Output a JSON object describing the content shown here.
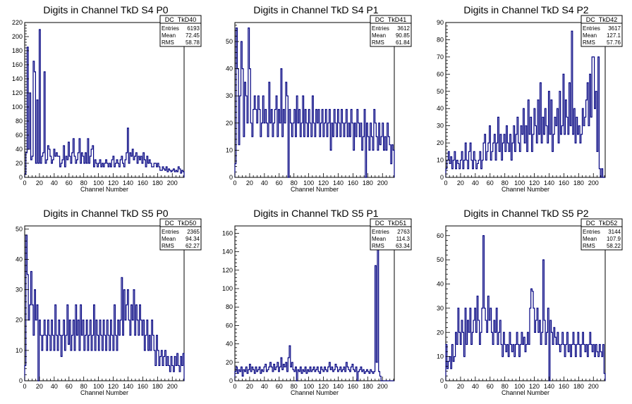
{
  "chart_data": [
    {
      "type": "bar",
      "name": "DC_TkD40",
      "title": "Digits in Channel TkD S4 P0",
      "xlabel": "Channel Number",
      "xlim": [
        0,
        216
      ],
      "ylim": [
        0,
        220
      ],
      "xticks": [
        "0",
        "20",
        "40",
        "60",
        "80",
        "100",
        "120",
        "140",
        "160",
        "180",
        "200"
      ],
      "yticks": [
        "0",
        "20",
        "40",
        "60",
        "80",
        "100",
        "120",
        "140",
        "160",
        "180",
        "200",
        "220"
      ],
      "stats": {
        "entries": "6193",
        "mean": "72.45",
        "rms": "58.78"
      },
      "values": [
        5,
        35,
        185,
        40,
        120,
        25,
        30,
        165,
        150,
        20,
        110,
        20,
        210,
        20,
        30,
        35,
        150,
        20,
        25,
        45,
        40,
        30,
        20,
        25,
        40,
        30,
        35,
        30,
        30,
        15,
        20,
        25,
        45,
        15,
        30,
        25,
        50,
        30,
        20,
        35,
        55,
        30,
        20,
        25,
        35,
        55,
        20,
        35,
        30,
        20,
        35,
        20,
        55,
        20,
        30,
        40,
        45,
        15,
        25,
        20,
        15,
        20,
        25,
        15,
        20,
        15,
        20,
        25,
        20,
        15,
        20,
        15,
        25,
        30,
        15,
        20,
        25,
        20,
        15,
        25,
        30,
        20,
        15,
        25,
        35,
        70,
        20,
        35,
        30,
        40,
        25,
        30,
        35,
        20,
        30,
        25,
        30,
        20,
        35,
        25,
        15,
        30,
        20,
        25,
        20,
        15,
        15,
        20,
        20,
        15,
        20,
        15,
        10,
        10,
        15,
        12,
        10,
        15,
        8,
        12,
        10,
        8,
        10,
        12,
        8,
        10,
        8,
        15,
        12,
        6,
        10,
        8
      ]
    },
    {
      "type": "bar",
      "name": "DC_TkD41",
      "title": "Digits in Channel TkD S4 P1",
      "xlabel": "Channel Number",
      "xlim": [
        0,
        216
      ],
      "ylim": [
        0,
        57
      ],
      "xticks": [
        "0",
        "20",
        "40",
        "60",
        "80",
        "100",
        "120",
        "140",
        "160",
        "180",
        "200"
      ],
      "yticks": [
        "0",
        "10",
        "20",
        "30",
        "40",
        "50"
      ],
      "stats": {
        "entries": "3612",
        "mean": "90.85",
        "rms": "61.84"
      },
      "values": [
        5,
        55,
        40,
        12,
        30,
        50,
        40,
        15,
        35,
        30,
        20,
        55,
        40,
        20,
        15,
        25,
        30,
        25,
        20,
        30,
        25,
        15,
        20,
        30,
        20,
        25,
        20,
        15,
        35,
        20,
        25,
        15,
        20,
        25,
        30,
        15,
        25,
        20,
        40,
        15,
        25,
        20,
        35,
        30,
        0,
        25,
        20,
        15,
        20,
        25,
        15,
        30,
        20,
        25,
        15,
        20,
        30,
        15,
        25,
        20,
        15,
        25,
        20,
        15,
        30,
        20,
        15,
        25,
        20,
        25,
        15,
        20,
        25,
        15,
        20,
        25,
        15,
        20,
        25,
        10,
        20,
        15,
        25,
        20,
        15,
        25,
        20,
        15,
        25,
        20,
        15,
        20,
        25,
        15,
        20,
        15,
        25,
        20,
        10,
        20,
        15,
        25,
        20,
        15,
        20,
        10,
        15,
        25,
        0,
        20,
        15,
        10,
        20,
        15,
        10,
        25,
        20,
        15,
        10,
        20,
        12,
        15,
        20,
        10,
        15,
        10,
        20,
        15,
        12,
        5,
        12,
        10
      ]
    },
    {
      "type": "bar",
      "name": "DC_TkD42",
      "title": "Digits in Channel TkD S4 P2",
      "xlabel": "Channel Number",
      "xlim": [
        0,
        216
      ],
      "ylim": [
        0,
        90
      ],
      "xticks": [
        "0",
        "20",
        "40",
        "60",
        "80",
        "100",
        "120",
        "140",
        "160",
        "180",
        "200"
      ],
      "yticks": [
        "0",
        "10",
        "20",
        "30",
        "40",
        "50",
        "60",
        "70",
        "80",
        "90"
      ],
      "stats": {
        "entries": "3617",
        "mean": "127.1",
        "rms": "57.76"
      },
      "values": [
        5,
        10,
        15,
        8,
        12,
        5,
        10,
        15,
        5,
        10,
        8,
        5,
        10,
        15,
        5,
        10,
        20,
        10,
        5,
        15,
        20,
        10,
        5,
        15,
        10,
        5,
        8,
        10,
        15,
        5,
        10,
        20,
        25,
        10,
        15,
        20,
        30,
        10,
        15,
        20,
        25,
        10,
        20,
        35,
        15,
        25,
        10,
        20,
        25,
        15,
        30,
        20,
        15,
        25,
        10,
        20,
        30,
        15,
        25,
        35,
        20,
        15,
        30,
        25,
        40,
        20,
        30,
        15,
        45,
        25,
        35,
        15,
        25,
        40,
        30,
        20,
        45,
        25,
        55,
        20,
        35,
        25,
        40,
        30,
        20,
        50,
        25,
        45,
        15,
        25,
        35,
        30,
        40,
        20,
        50,
        25,
        30,
        60,
        25,
        45,
        35,
        25,
        55,
        30,
        85,
        25,
        40,
        20,
        35,
        25,
        30,
        20,
        25,
        40,
        30,
        35,
        45,
        55,
        30,
        60,
        35,
        70,
        70,
        40,
        50,
        15,
        70,
        5,
        0,
        5,
        0,
        0
      ]
    },
    {
      "type": "bar",
      "name": "DC_TkD50",
      "title": "Digits in Channel TkD S5 P0",
      "xlabel": "Channel Number",
      "xlim": [
        0,
        216
      ],
      "ylim": [
        0,
        51
      ],
      "xticks": [
        "0",
        "20",
        "40",
        "60",
        "80",
        "100",
        "120",
        "140",
        "160",
        "180",
        "200"
      ],
      "yticks": [
        "0",
        "10",
        "20",
        "30",
        "40",
        "50"
      ],
      "stats": {
        "entries": "2365",
        "mean": "94.34",
        "rms": "62.27"
      },
      "values": [
        5,
        48,
        35,
        20,
        25,
        36,
        25,
        15,
        30,
        20,
        25,
        0,
        20,
        15,
        10,
        15,
        20,
        15,
        10,
        20,
        15,
        10,
        20,
        15,
        10,
        25,
        15,
        10,
        20,
        15,
        8,
        15,
        20,
        10,
        15,
        25,
        12,
        20,
        10,
        15,
        20,
        10,
        25,
        15,
        20,
        10,
        25,
        15,
        20,
        10,
        15,
        20,
        10,
        15,
        20,
        10,
        15,
        25,
        10,
        20,
        15,
        10,
        20,
        15,
        10,
        20,
        15,
        10,
        20,
        15,
        10,
        20,
        15,
        10,
        25,
        15,
        10,
        20,
        15,
        20,
        34,
        15,
        30,
        20,
        25,
        30,
        20,
        15,
        25,
        20,
        30,
        15,
        25,
        20,
        15,
        25,
        20,
        15,
        20,
        10,
        15,
        20,
        10,
        15,
        10,
        20,
        15,
        10,
        5,
        15,
        10,
        5,
        8,
        10,
        5,
        8,
        10,
        5,
        8,
        5,
        3,
        8,
        5,
        3,
        8,
        5,
        9,
        5,
        3,
        8,
        5,
        9
      ]
    },
    {
      "type": "bar",
      "name": "DC_TkD51",
      "title": "Digits in Channel TkD S5 P1",
      "xlabel": "Channel Number",
      "xlim": [
        0,
        216
      ],
      "ylim": [
        0,
        168
      ],
      "xticks": [
        "0",
        "20",
        "40",
        "60",
        "80",
        "100",
        "120",
        "140",
        "160",
        "180",
        "200"
      ],
      "yticks": [
        "0",
        "20",
        "40",
        "60",
        "80",
        "100",
        "120",
        "140",
        "160"
      ],
      "stats": {
        "entries": "2763",
        "mean": "114.3",
        "rms": "63.34"
      },
      "values": [
        10,
        15,
        8,
        12,
        10,
        15,
        5,
        12,
        10,
        15,
        8,
        12,
        18,
        10,
        15,
        12,
        8,
        15,
        10,
        12,
        15,
        8,
        12,
        10,
        15,
        18,
        10,
        12,
        15,
        20,
        15,
        10,
        18,
        12,
        15,
        20,
        10,
        15,
        25,
        12,
        18,
        15,
        20,
        10,
        25,
        38,
        15,
        20,
        12,
        10,
        15,
        0,
        12,
        10,
        15,
        8,
        12,
        10,
        15,
        8,
        12,
        10,
        15,
        10,
        12,
        15,
        10,
        12,
        15,
        10,
        8,
        15,
        12,
        10,
        15,
        12,
        10,
        15,
        20,
        12,
        15,
        10,
        12,
        18,
        15,
        10,
        12,
        15,
        10,
        12,
        15,
        10,
        20,
        15,
        12,
        10,
        15,
        18,
        12,
        10,
        15,
        0,
        10,
        12,
        15,
        10,
        12,
        8,
        10,
        12,
        10,
        8,
        12,
        10,
        8,
        10,
        125,
        20,
        150,
        10,
        5,
        0,
        0,
        0,
        0,
        0,
        0,
        0,
        0,
        0,
        0,
        0
      ]
    },
    {
      "type": "bar",
      "name": "DC_TkD52",
      "title": "Digits in Channel TkD S5 P2",
      "xlabel": "Channel Number",
      "xlim": [
        0,
        216
      ],
      "ylim": [
        0,
        64
      ],
      "xticks": [
        "0",
        "20",
        "40",
        "60",
        "80",
        "100",
        "120",
        "140",
        "160",
        "180",
        "200"
      ],
      "yticks": [
        "0",
        "10",
        "20",
        "30",
        "40",
        "50",
        "60"
      ],
      "stats": {
        "entries": "3144",
        "mean": "107.9",
        "rms": "58.22"
      },
      "values": [
        15,
        5,
        8,
        10,
        5,
        15,
        8,
        10,
        20,
        15,
        30,
        20,
        15,
        25,
        20,
        10,
        30,
        15,
        25,
        20,
        30,
        15,
        20,
        25,
        30,
        20,
        35,
        25,
        15,
        20,
        30,
        60,
        30,
        25,
        20,
        35,
        25,
        30,
        20,
        15,
        25,
        20,
        30,
        15,
        20,
        25,
        15,
        10,
        20,
        15,
        12,
        15,
        10,
        20,
        15,
        12,
        15,
        10,
        15,
        20,
        15,
        10,
        15,
        20,
        15,
        18,
        12,
        15,
        20,
        15,
        30,
        38,
        37,
        30,
        20,
        25,
        30,
        20,
        25,
        15,
        20,
        50,
        25,
        15,
        20,
        30,
        0,
        25,
        20,
        15,
        22,
        18,
        15,
        20,
        15,
        12,
        15,
        20,
        15,
        10,
        15,
        20,
        12,
        15,
        10,
        15,
        20,
        15,
        10,
        15,
        20,
        15,
        10,
        15,
        20,
        15,
        12,
        15,
        10,
        15,
        20,
        15,
        12,
        15,
        10,
        15,
        12,
        10,
        15,
        12,
        10,
        15,
        3
      ]
    }
  ]
}
